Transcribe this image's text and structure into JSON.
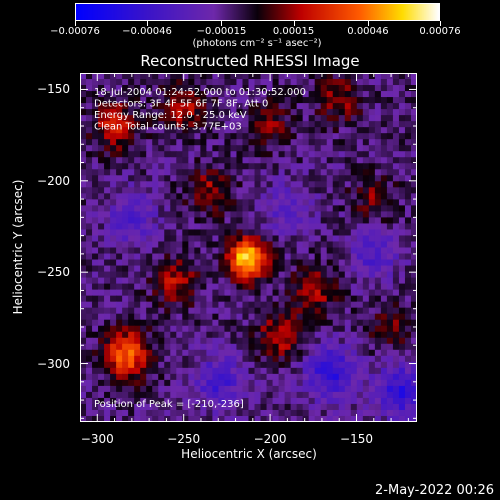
{
  "chart_data": {
    "type": "heatmap",
    "title": "Reconstructed RHESSI Image",
    "xlabel": "Heliocentric X (arcsec)",
    "ylabel": "Heliocentric Y (arcsec)",
    "xlim": [
      -310,
      -115
    ],
    "ylim": [
      -332,
      -141
    ],
    "x_ticks": [
      -300,
      -250,
      -200,
      -150
    ],
    "y_ticks": [
      -150,
      -200,
      -250,
      -300
    ],
    "colorbar": {
      "ticks": [
        -0.00076,
        -0.00046,
        -0.00015,
        0.00015,
        0.00046,
        0.00076
      ],
      "tick_labels": [
        "-0.00076",
        "-0.00046",
        "-0.00015",
        "0.00015",
        "0.00046",
        "0.00076"
      ],
      "units": "(photons cm⁻² s⁻¹ asec⁻²)",
      "range": [
        -0.00076,
        0.00076
      ]
    },
    "annotations": [
      "18-Jul-2004 01:24:52.000 to 01:30:52.000",
      "Detectors: 3F 4F 5F 6F 7F 8F, Att 0",
      "Energy Range: 12.0 - 25.0 keV",
      "Clean     Total counts: 3.77E+03"
    ],
    "peak_label": "Position of Peak = [-210,-236]",
    "peak": {
      "x": -210,
      "y": -236
    },
    "sources": [
      {
        "x": -213,
        "y": -243,
        "amp": 0.00076
      },
      {
        "x": -283,
        "y": -295,
        "amp": 0.00055
      },
      {
        "x": -290,
        "y": -170,
        "amp": 0.00035
      },
      {
        "x": -250,
        "y": -160,
        "amp": 0.0003
      },
      {
        "x": -235,
        "y": -205,
        "amp": 0.00025
      },
      {
        "x": -175,
        "y": -260,
        "amp": 0.0003
      },
      {
        "x": -195,
        "y": -285,
        "amp": 0.0003
      },
      {
        "x": -160,
        "y": -155,
        "amp": 0.00025
      },
      {
        "x": -255,
        "y": -255,
        "amp": 0.0003
      },
      {
        "x": -140,
        "y": -210,
        "amp": 0.0002
      },
      {
        "x": -200,
        "y": -170,
        "amp": 0.00022
      },
      {
        "x": -130,
        "y": -280,
        "amp": 0.00018
      }
    ],
    "dips": [
      {
        "x": -165,
        "y": -305,
        "amp": -0.0004
      },
      {
        "x": -125,
        "y": -315,
        "amp": -0.0004
      },
      {
        "x": -280,
        "y": -220,
        "amp": -0.00025
      },
      {
        "x": -230,
        "y": -310,
        "amp": -0.0003
      },
      {
        "x": -140,
        "y": -240,
        "amp": -0.00025
      },
      {
        "x": -190,
        "y": -215,
        "amp": -0.0002
      }
    ]
  },
  "footer": {
    "timestamp": "2-May-2022 00:26"
  }
}
